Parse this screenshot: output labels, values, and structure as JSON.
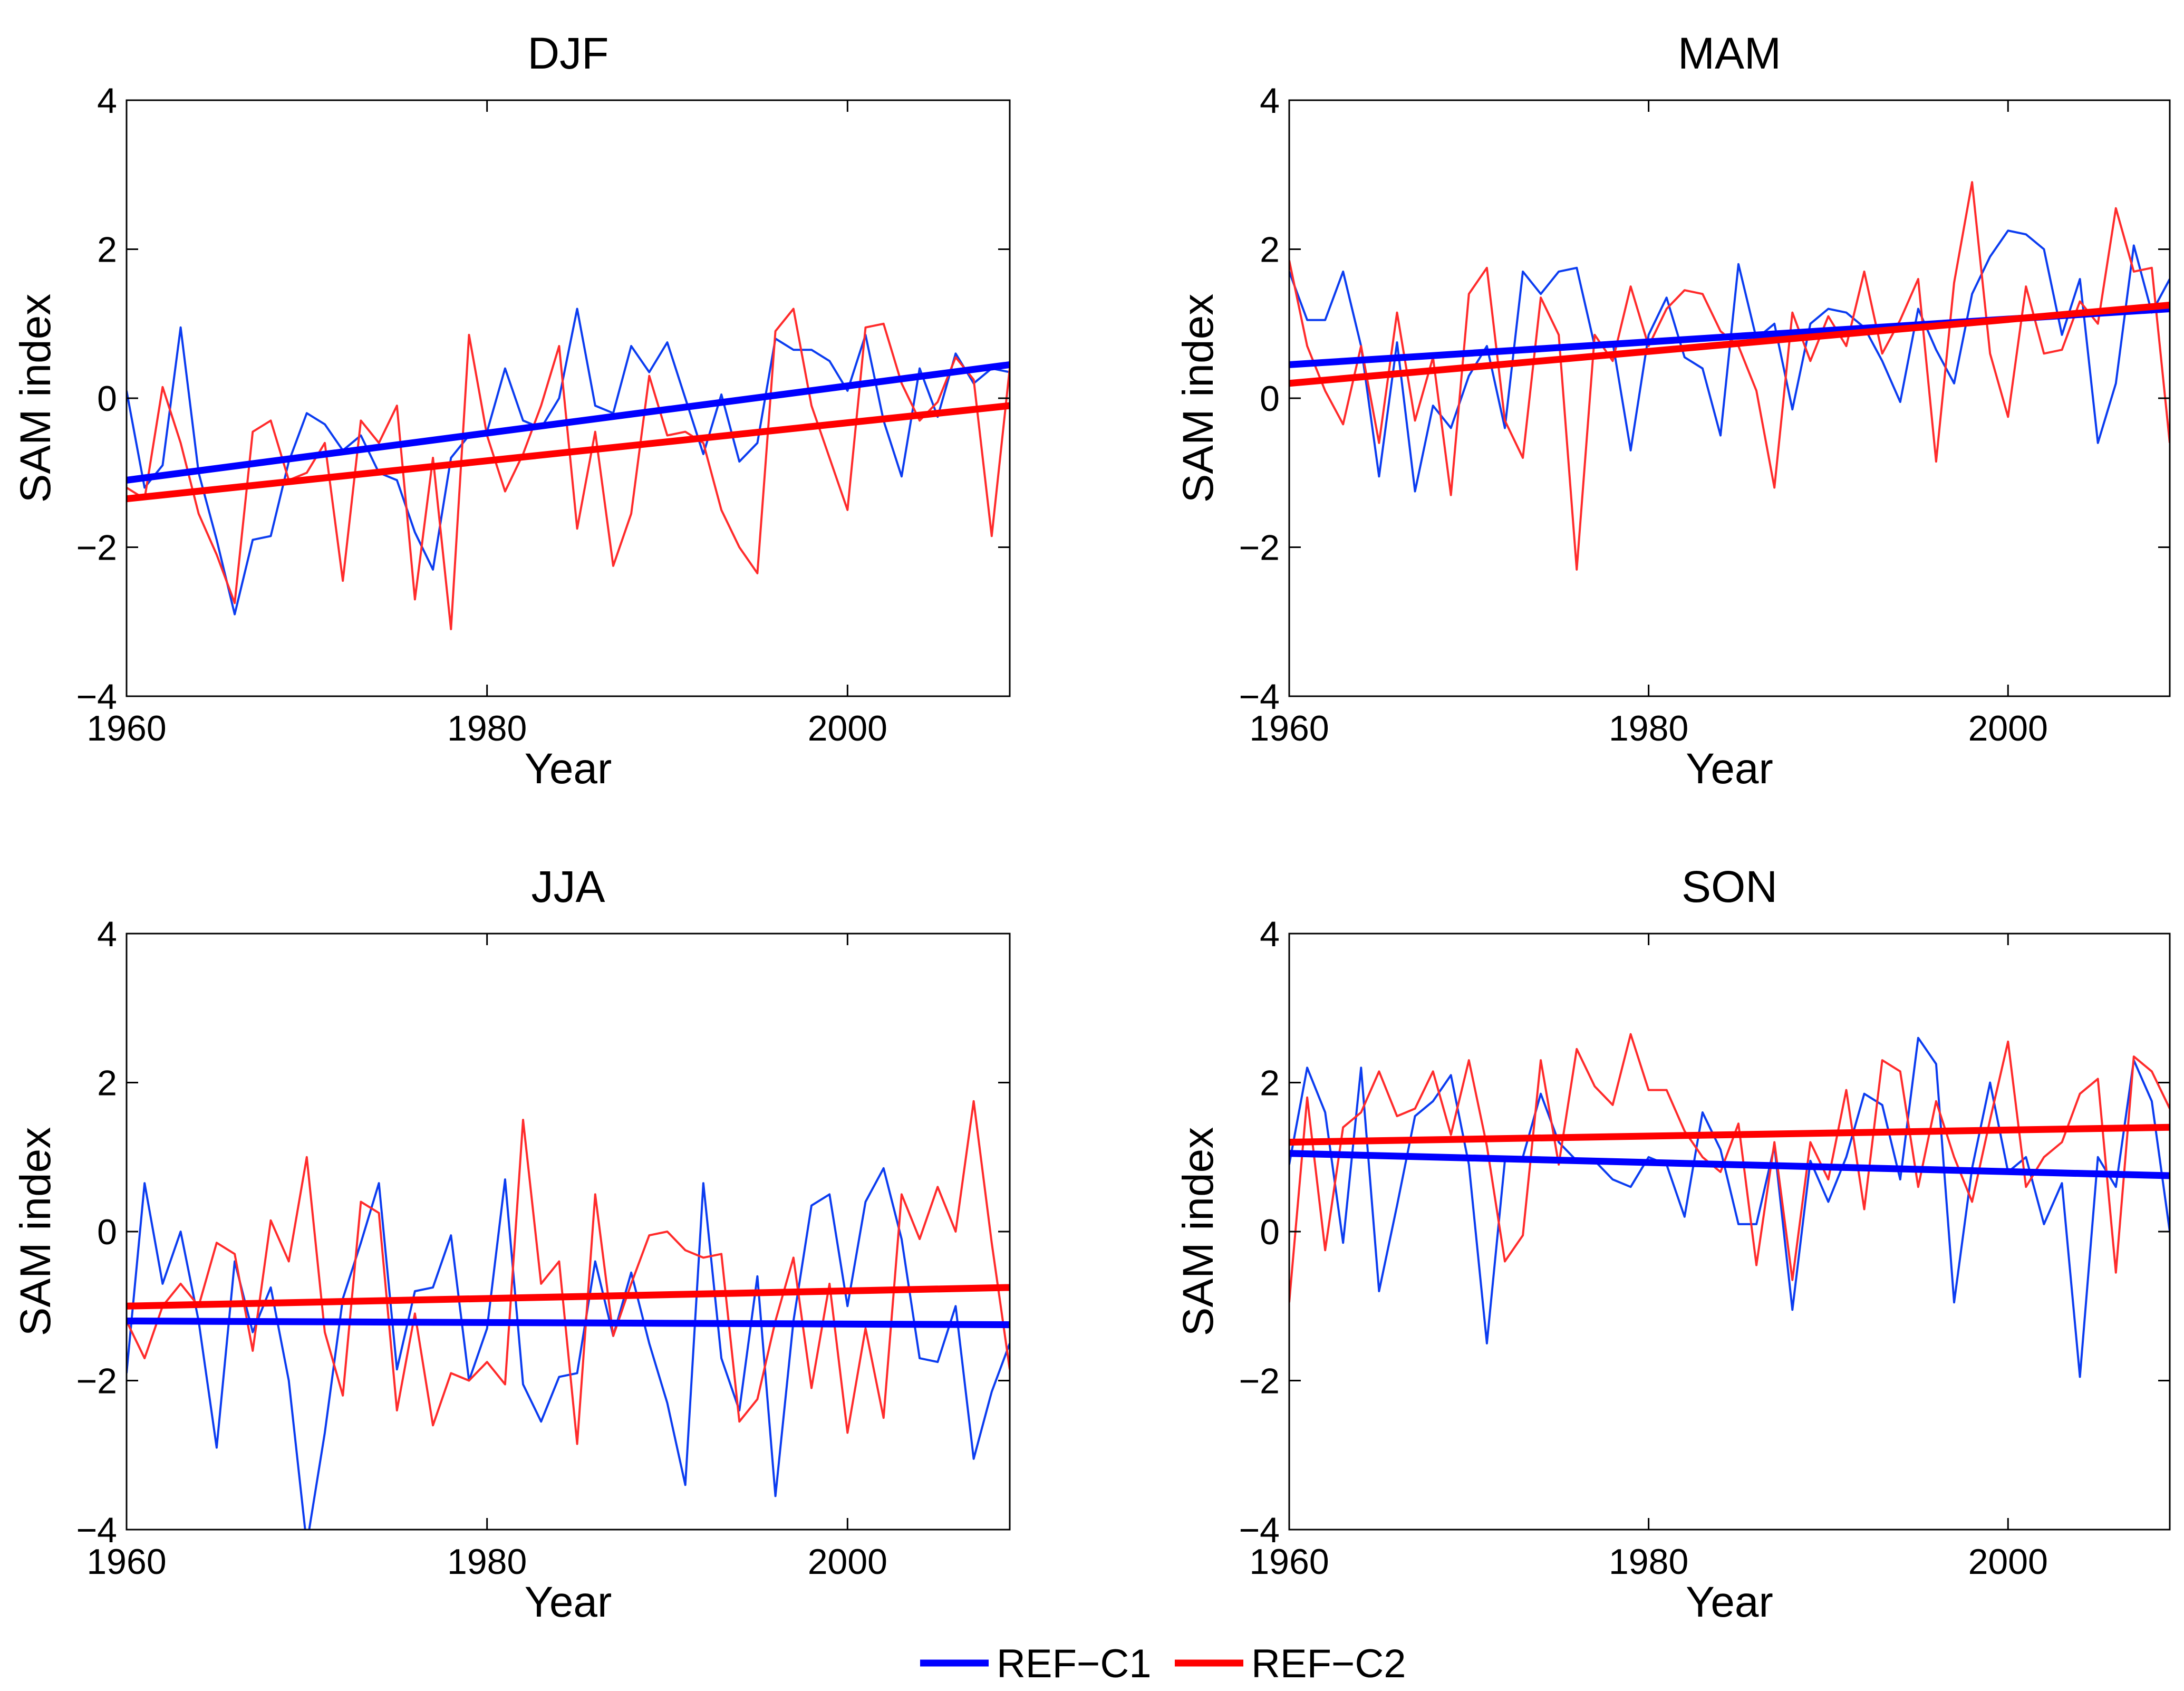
{
  "chart_data": [
    {
      "type": "line",
      "title": "DJF",
      "xlabel": "Year",
      "ylabel": "SAM index",
      "xlim": [
        1960,
        2009
      ],
      "ylim": [
        -4,
        4
      ],
      "xticks": [
        1960,
        1980,
        2000
      ],
      "yticks": [
        -4,
        -2,
        0,
        2,
        4
      ],
      "x": [
        1960,
        1961,
        1962,
        1963,
        1964,
        1965,
        1966,
        1967,
        1968,
        1969,
        1970,
        1971,
        1972,
        1973,
        1974,
        1975,
        1976,
        1977,
        1978,
        1979,
        1980,
        1981,
        1982,
        1983,
        1984,
        1985,
        1986,
        1987,
        1988,
        1989,
        1990,
        1991,
        1992,
        1993,
        1994,
        1995,
        1996,
        1997,
        1998,
        1999,
        2000,
        2001,
        2002,
        2003,
        2004,
        2005,
        2006,
        2007,
        2008,
        2009
      ],
      "series": [
        {
          "name": "REF-C1",
          "color": "#0b3cf0",
          "values": [
            0.1,
            -1.2,
            -0.9,
            0.95,
            -1.0,
            -1.9,
            -2.9,
            -1.9,
            -1.85,
            -0.85,
            -0.2,
            -0.35,
            -0.7,
            -0.5,
            -1.0,
            -1.1,
            -1.8,
            -2.3,
            -0.8,
            -0.5,
            -0.45,
            0.4,
            -0.3,
            -0.4,
            0.0,
            1.2,
            -0.1,
            -0.2,
            0.7,
            0.35,
            0.75,
            0.0,
            -0.75,
            0.05,
            -0.85,
            -0.6,
            0.8,
            0.65,
            0.65,
            0.5,
            0.1,
            0.85,
            -0.3,
            -1.05,
            0.4,
            -0.25,
            0.6,
            0.2,
            0.4,
            0.35
          ]
        },
        {
          "name": "REF-C2",
          "color": "#ff2b2b",
          "values": [
            -1.2,
            -1.35,
            0.15,
            -0.6,
            -1.55,
            -2.1,
            -2.75,
            -0.45,
            -0.3,
            -1.1,
            -1.0,
            -0.6,
            -2.45,
            -0.3,
            -0.6,
            -0.1,
            -2.7,
            -0.8,
            -3.1,
            0.85,
            -0.5,
            -1.25,
            -0.75,
            -0.1,
            0.7,
            -1.75,
            -0.45,
            -2.25,
            -1.55,
            0.3,
            -0.5,
            -0.45,
            -0.6,
            -1.5,
            -2.0,
            -2.35,
            0.9,
            1.2,
            -0.1,
            -0.8,
            -1.5,
            0.95,
            1.0,
            0.2,
            -0.3,
            -0.05,
            0.55,
            0.25,
            -1.85,
            0.4
          ]
        }
      ],
      "trends": [
        {
          "name": "REF-C1",
          "color": "#0000ff",
          "start": -1.1,
          "end": 0.45
        },
        {
          "name": "REF-C2",
          "color": "#ff0000",
          "start": -1.35,
          "end": -0.1
        }
      ]
    },
    {
      "type": "line",
      "title": "MAM",
      "xlabel": "Year",
      "ylabel": "SAM index",
      "xlim": [
        1960,
        2009
      ],
      "ylim": [
        -4,
        4
      ],
      "xticks": [
        1960,
        1980,
        2000
      ],
      "yticks": [
        -4,
        -2,
        0,
        2,
        4
      ],
      "x": [
        1960,
        1961,
        1962,
        1963,
        1964,
        1965,
        1966,
        1967,
        1968,
        1969,
        1970,
        1971,
        1972,
        1973,
        1974,
        1975,
        1976,
        1977,
        1978,
        1979,
        1980,
        1981,
        1982,
        1983,
        1984,
        1985,
        1986,
        1987,
        1988,
        1989,
        1990,
        1991,
        1992,
        1993,
        1994,
        1995,
        1996,
        1997,
        1998,
        1999,
        2000,
        2001,
        2002,
        2003,
        2004,
        2005,
        2006,
        2007,
        2008,
        2009
      ],
      "series": [
        {
          "name": "REF-C1",
          "color": "#0b3cf0",
          "values": [
            1.7,
            1.05,
            1.05,
            1.7,
            0.7,
            -1.05,
            0.75,
            -1.25,
            -0.1,
            -0.4,
            0.3,
            0.7,
            -0.4,
            1.7,
            1.4,
            1.7,
            1.75,
            0.7,
            0.75,
            -0.7,
            0.85,
            1.35,
            0.55,
            0.4,
            -0.5,
            1.8,
            0.8,
            1.0,
            -0.15,
            1.0,
            1.2,
            1.15,
            0.95,
            0.5,
            -0.05,
            1.2,
            0.65,
            0.2,
            1.4,
            1.9,
            2.25,
            2.2,
            2.0,
            0.85,
            1.6,
            -0.6,
            0.2,
            2.05,
            1.15,
            1.6
          ]
        },
        {
          "name": "REF-C2",
          "color": "#ff2b2b",
          "values": [
            1.85,
            0.7,
            0.1,
            -0.35,
            0.7,
            -0.6,
            1.15,
            -0.3,
            0.55,
            -1.3,
            1.4,
            1.75,
            -0.3,
            -0.8,
            1.35,
            0.85,
            -2.3,
            0.85,
            0.5,
            1.5,
            0.7,
            1.2,
            1.45,
            1.4,
            0.9,
            0.7,
            0.1,
            -1.2,
            1.15,
            0.5,
            1.1,
            0.7,
            1.7,
            0.6,
            1.05,
            1.6,
            -0.85,
            1.55,
            2.9,
            0.6,
            -0.25,
            1.5,
            0.6,
            0.65,
            1.3,
            1.0,
            2.55,
            1.7,
            1.75,
            -0.6
          ]
        }
      ],
      "trends": [
        {
          "name": "REF-C1",
          "color": "#0000ff",
          "start": 0.45,
          "end": 1.2
        },
        {
          "name": "REF-C2",
          "color": "#ff0000",
          "start": 0.2,
          "end": 1.25
        }
      ]
    },
    {
      "type": "line",
      "title": "JJA",
      "xlabel": "Year",
      "ylabel": "SAM index",
      "xlim": [
        1960,
        2009
      ],
      "ylim": [
        -4,
        4
      ],
      "xticks": [
        1960,
        1980,
        2000
      ],
      "yticks": [
        -4,
        -2,
        0,
        2,
        4
      ],
      "x": [
        1960,
        1961,
        1962,
        1963,
        1964,
        1965,
        1966,
        1967,
        1968,
        1969,
        1970,
        1971,
        1972,
        1973,
        1974,
        1975,
        1976,
        1977,
        1978,
        1979,
        1980,
        1981,
        1982,
        1983,
        1984,
        1985,
        1986,
        1987,
        1988,
        1989,
        1990,
        1991,
        1992,
        1993,
        1994,
        1995,
        1996,
        1997,
        1998,
        1999,
        2000,
        2001,
        2002,
        2003,
        2004,
        2005,
        2006,
        2007,
        2008,
        2009
      ],
      "series": [
        {
          "name": "REF-C1",
          "color": "#0b3cf0",
          "values": [
            -1.9,
            0.65,
            -0.7,
            0.0,
            -1.2,
            -2.9,
            -0.4,
            -1.35,
            -0.75,
            -2.0,
            -4.2,
            -2.7,
            -0.9,
            -0.15,
            0.65,
            -1.85,
            -0.8,
            -0.75,
            -0.05,
            -2.0,
            -1.3,
            0.7,
            -2.05,
            -2.55,
            -1.95,
            -1.9,
            -0.4,
            -1.4,
            -0.55,
            -1.5,
            -2.3,
            -3.4,
            0.65,
            -1.7,
            -2.4,
            -0.6,
            -3.55,
            -1.2,
            0.35,
            0.5,
            -1.0,
            0.4,
            0.85,
            -0.1,
            -1.7,
            -1.75,
            -1.0,
            -3.05,
            -2.15,
            -1.5
          ]
        },
        {
          "name": "REF-C2",
          "color": "#ff2b2b",
          "values": [
            -1.2,
            -1.7,
            -1.0,
            -0.7,
            -1.0,
            -0.15,
            -0.3,
            -1.6,
            0.15,
            -0.4,
            1.0,
            -1.35,
            -2.2,
            0.4,
            0.25,
            -2.4,
            -1.1,
            -2.6,
            -1.9,
            -2.0,
            -1.75,
            -2.05,
            1.5,
            -0.7,
            -0.4,
            -2.85,
            0.5,
            -1.4,
            -0.7,
            -0.05,
            0.0,
            -0.25,
            -0.35,
            -0.3,
            -2.55,
            -2.25,
            -1.2,
            -0.35,
            -2.1,
            -0.7,
            -2.7,
            -1.3,
            -2.5,
            0.5,
            -0.1,
            0.6,
            0.0,
            1.75,
            -0.15,
            -1.85
          ]
        }
      ],
      "trends": [
        {
          "name": "REF-C1",
          "color": "#0000ff",
          "start": -1.2,
          "end": -1.25
        },
        {
          "name": "REF-C2",
          "color": "#ff0000",
          "start": -1.0,
          "end": -0.75
        }
      ]
    },
    {
      "type": "line",
      "title": "SON",
      "xlabel": "Year",
      "ylabel": "SAM index",
      "xlim": [
        1960,
        2009
      ],
      "ylim": [
        -4,
        4
      ],
      "xticks": [
        1960,
        1980,
        2000
      ],
      "yticks": [
        -4,
        -2,
        0,
        2,
        4
      ],
      "x": [
        1960,
        1961,
        1962,
        1963,
        1964,
        1965,
        1966,
        1967,
        1968,
        1969,
        1970,
        1971,
        1972,
        1973,
        1974,
        1975,
        1976,
        1977,
        1978,
        1979,
        1980,
        1981,
        1982,
        1983,
        1984,
        1985,
        1986,
        1987,
        1988,
        1989,
        1990,
        1991,
        1992,
        1993,
        1994,
        1995,
        1996,
        1997,
        1998,
        1999,
        2000,
        2001,
        2002,
        2003,
        2004,
        2005,
        2006,
        2007,
        2008,
        2009
      ],
      "series": [
        {
          "name": "REF-C1",
          "color": "#0b3cf0",
          "values": [
            0.9,
            2.2,
            1.6,
            -0.15,
            2.2,
            -0.8,
            0.35,
            1.55,
            1.75,
            2.1,
            0.9,
            -1.5,
            0.95,
            1.0,
            1.85,
            1.2,
            0.95,
            0.95,
            0.7,
            0.6,
            1.0,
            0.9,
            0.2,
            1.6,
            1.1,
            0.1,
            0.1,
            1.15,
            -1.05,
            0.95,
            0.4,
            1.0,
            1.85,
            1.7,
            0.7,
            2.6,
            2.25,
            -0.95,
            0.85,
            2.0,
            0.8,
            1.0,
            0.1,
            0.65,
            -1.95,
            1.0,
            0.6,
            2.3,
            1.75,
            0.0
          ]
        },
        {
          "name": "REF-C2",
          "color": "#ff2b2b",
          "values": [
            -0.95,
            1.8,
            -0.25,
            1.4,
            1.6,
            2.15,
            1.55,
            1.65,
            2.15,
            1.3,
            2.3,
            1.15,
            -0.4,
            -0.05,
            2.3,
            0.9,
            2.45,
            1.95,
            1.7,
            2.65,
            1.9,
            1.9,
            1.35,
            1.0,
            0.8,
            1.45,
            -0.45,
            1.2,
            -0.65,
            1.2,
            0.7,
            1.9,
            0.3,
            2.3,
            2.15,
            0.6,
            1.75,
            1.0,
            0.4,
            1.5,
            2.55,
            0.6,
            1.0,
            1.2,
            1.85,
            2.05,
            -0.55,
            2.35,
            2.15,
            1.65
          ]
        }
      ],
      "trends": [
        {
          "name": "REF-C1",
          "color": "#0000ff",
          "start": 1.05,
          "end": 0.75
        },
        {
          "name": "REF-C2",
          "color": "#ff0000",
          "start": 1.2,
          "end": 1.4
        }
      ]
    }
  ],
  "legend": {
    "placement": "bottom-center",
    "items": [
      {
        "label": "REF−C1",
        "color": "#0000ff"
      },
      {
        "label": "REF−C2",
        "color": "#ff0000"
      }
    ]
  }
}
